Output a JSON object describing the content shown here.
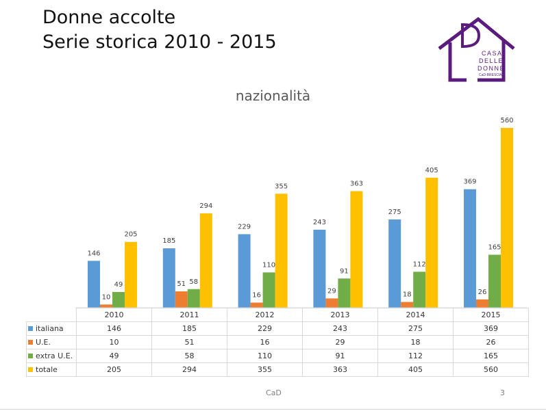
{
  "slide": {
    "title_line1": "Donne accolte",
    "title_line2": "Serie storica 2010 - 2015",
    "footer_center": "CaD",
    "page_number": "3"
  },
  "logo": {
    "line1": "CASA",
    "line2": "DELLE",
    "line3": "DONNE",
    "line4": "CaD-BRESCIA",
    "color": "#5b1a7d"
  },
  "chart_data": {
    "type": "bar",
    "title": "nazionalità",
    "categories": [
      "2010",
      "2011",
      "2012",
      "2013",
      "2014",
      "2015"
    ],
    "series": [
      {
        "name": "italiana",
        "color": "#5b9bd5",
        "values": [
          146,
          185,
          229,
          243,
          275,
          369
        ]
      },
      {
        "name": "U.E.",
        "color": "#ed7d31",
        "values": [
          10,
          51,
          16,
          29,
          18,
          26
        ]
      },
      {
        "name": "extra U.E.",
        "color": "#70ad47",
        "values": [
          49,
          58,
          110,
          91,
          112,
          165
        ]
      },
      {
        "name": "totale",
        "color": "#ffc000",
        "values": [
          205,
          294,
          355,
          363,
          405,
          560
        ]
      }
    ],
    "ylim": [
      0,
      560
    ],
    "grid": false,
    "legend": "data table below chart"
  }
}
